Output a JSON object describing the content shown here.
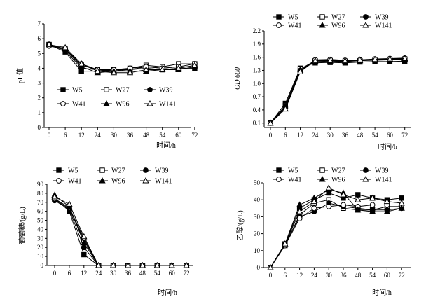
{
  "chart_data": [
    {
      "type": "line",
      "ylabel": "pH值",
      "xlabel": "时间/h",
      "x": [
        0,
        6,
        12,
        24,
        30,
        36,
        48,
        54,
        60,
        72
      ],
      "xticks": [
        "0",
        "6",
        "12",
        "24",
        "30",
        "36",
        "48",
        "54",
        "60",
        "72"
      ],
      "ylim": [
        0,
        7
      ],
      "yticks": [
        "0",
        "1",
        "2",
        "3",
        "4",
        "5",
        "6",
        "7"
      ],
      "legend": {
        "position": "lower-left",
        "columns": 3
      },
      "series": [
        {
          "name": "W5",
          "marker": "square-filled",
          "values": [
            5.6,
            5.1,
            3.8,
            3.8,
            3.9,
            3.9,
            4.0,
            3.9,
            4.0,
            4.0
          ]
        },
        {
          "name": "W27",
          "marker": "square-open",
          "values": [
            5.6,
            5.3,
            4.2,
            3.9,
            3.8,
            4.0,
            4.2,
            4.1,
            4.3,
            4.3
          ]
        },
        {
          "name": "W39",
          "marker": "circle-filled",
          "values": [
            5.6,
            5.2,
            4.0,
            3.9,
            3.8,
            3.9,
            4.1,
            4.0,
            4.1,
            4.1
          ]
        },
        {
          "name": "W41",
          "marker": "circle-open",
          "values": [
            5.5,
            5.3,
            4.3,
            3.9,
            3.9,
            4.0,
            4.1,
            4.0,
            4.1,
            4.3
          ]
        },
        {
          "name": "W96",
          "marker": "triangle-filled",
          "values": [
            5.6,
            5.3,
            4.1,
            3.7,
            3.8,
            3.8,
            3.8,
            3.9,
            3.9,
            4.1
          ]
        },
        {
          "name": "W141",
          "marker": "triangle-open",
          "values": [
            5.6,
            5.4,
            4.3,
            3.8,
            3.7,
            3.7,
            3.9,
            3.9,
            4.0,
            4.2
          ]
        }
      ]
    },
    {
      "type": "line",
      "ylabel": "OD 600",
      "xlabel": "时间/h",
      "x": [
        0,
        6,
        12,
        24,
        30,
        36,
        48,
        54,
        60,
        72
      ],
      "xticks": [
        "0",
        "6",
        "12",
        "24",
        "30",
        "36",
        "48",
        "54",
        "60",
        "72"
      ],
      "ylim": [
        0.0,
        2.2
      ],
      "yticks": [
        "0.1",
        "0.4",
        "0.7",
        "1.0",
        "1.3",
        "1.6",
        "1.9",
        "2.2"
      ],
      "legend": {
        "position": "top",
        "columns": 3
      },
      "series": [
        {
          "name": "W5",
          "marker": "square-filled",
          "values": [
            0.1,
            0.55,
            1.35,
            1.47,
            1.48,
            1.47,
            1.49,
            1.5,
            1.5,
            1.51
          ]
        },
        {
          "name": "W27",
          "marker": "square-open",
          "values": [
            0.1,
            0.5,
            1.33,
            1.52,
            1.52,
            1.51,
            1.52,
            1.53,
            1.54,
            1.56
          ]
        },
        {
          "name": "W39",
          "marker": "circle-filled",
          "values": [
            0.1,
            0.48,
            1.3,
            1.53,
            1.54,
            1.52,
            1.53,
            1.55,
            1.56,
            1.57
          ]
        },
        {
          "name": "W41",
          "marker": "circle-open",
          "values": [
            0.1,
            0.45,
            1.28,
            1.54,
            1.55,
            1.53,
            1.54,
            1.56,
            1.57,
            1.58
          ]
        },
        {
          "name": "W96",
          "marker": "triangle-filled",
          "values": [
            0.1,
            0.47,
            1.31,
            1.5,
            1.51,
            1.5,
            1.52,
            1.54,
            1.55,
            1.55
          ]
        },
        {
          "name": "W141",
          "marker": "triangle-open",
          "values": [
            0.1,
            0.42,
            1.27,
            1.52,
            1.53,
            1.52,
            1.54,
            1.55,
            1.56,
            1.57
          ]
        }
      ]
    },
    {
      "type": "line",
      "ylabel": "葡萄糖/(g/L)",
      "xlabel": "时间/h",
      "x": [
        0,
        6,
        12,
        24,
        30,
        36,
        48,
        54,
        60,
        72
      ],
      "xticks": [
        "0",
        "6",
        "12",
        "24",
        "30",
        "36",
        "48",
        "54",
        "60",
        "72"
      ],
      "ylim": [
        0,
        90
      ],
      "yticks": [
        "0",
        "10",
        "20",
        "30",
        "40",
        "50",
        "60",
        "70",
        "80",
        "90"
      ],
      "legend": {
        "position": "top",
        "columns": 3
      },
      "series": [
        {
          "name": "W5",
          "marker": "square-filled",
          "values": [
            75,
            60,
            12,
            0,
            0,
            0,
            0,
            0,
            0,
            0
          ]
        },
        {
          "name": "W27",
          "marker": "square-open",
          "values": [
            73,
            63,
            28,
            0,
            0,
            0,
            0,
            0,
            0,
            0
          ]
        },
        {
          "name": "W39",
          "marker": "circle-filled",
          "values": [
            72,
            62,
            20,
            0,
            0,
            0,
            0,
            0,
            0,
            0
          ]
        },
        {
          "name": "W41",
          "marker": "circle-open",
          "values": [
            74,
            64,
            30,
            0,
            0,
            0,
            0,
            0,
            0,
            0
          ]
        },
        {
          "name": "W96",
          "marker": "triangle-filled",
          "values": [
            78,
            65,
            25,
            0,
            0,
            0,
            0,
            0,
            0,
            0
          ]
        },
        {
          "name": "W141",
          "marker": "triangle-open",
          "values": [
            76,
            68,
            32,
            0,
            0,
            0,
            0,
            0,
            0,
            0
          ]
        }
      ]
    },
    {
      "type": "line",
      "ylabel": "乙醇/(g/L)",
      "xlabel": "时间/h",
      "x": [
        0,
        6,
        12,
        24,
        30,
        36,
        48,
        54,
        60,
        72
      ],
      "xticks": [
        "0",
        "6",
        "12",
        "24",
        "30",
        "36",
        "48",
        "54",
        "60",
        "72"
      ],
      "ylim": [
        0,
        50
      ],
      "yticks": [
        "0",
        "10",
        "20",
        "30",
        "40",
        "50"
      ],
      "legend": {
        "position": "top",
        "columns": 3
      },
      "series": [
        {
          "name": "W5",
          "marker": "square-filled",
          "values": [
            0,
            14,
            35,
            40,
            44,
            41,
            43,
            41,
            40,
            41
          ]
        },
        {
          "name": "W27",
          "marker": "square-open",
          "values": [
            0,
            13,
            31,
            38,
            40,
            35,
            34,
            34,
            36,
            36
          ]
        },
        {
          "name": "W39",
          "marker": "circle-filled",
          "values": [
            0,
            14,
            30,
            33,
            38,
            36,
            35,
            34,
            34,
            35
          ]
        },
        {
          "name": "W41",
          "marker": "circle-open",
          "values": [
            0,
            13,
            29,
            35,
            36,
            37,
            36,
            37,
            37,
            37
          ]
        },
        {
          "name": "W96",
          "marker": "triangle-filled",
          "values": [
            0,
            14,
            37,
            41,
            46,
            44,
            34,
            33,
            33,
            35
          ]
        },
        {
          "name": "W141",
          "marker": "triangle-open",
          "values": [
            0,
            14,
            33,
            39,
            47,
            43,
            40,
            41,
            39,
            38
          ]
        }
      ]
    }
  ]
}
